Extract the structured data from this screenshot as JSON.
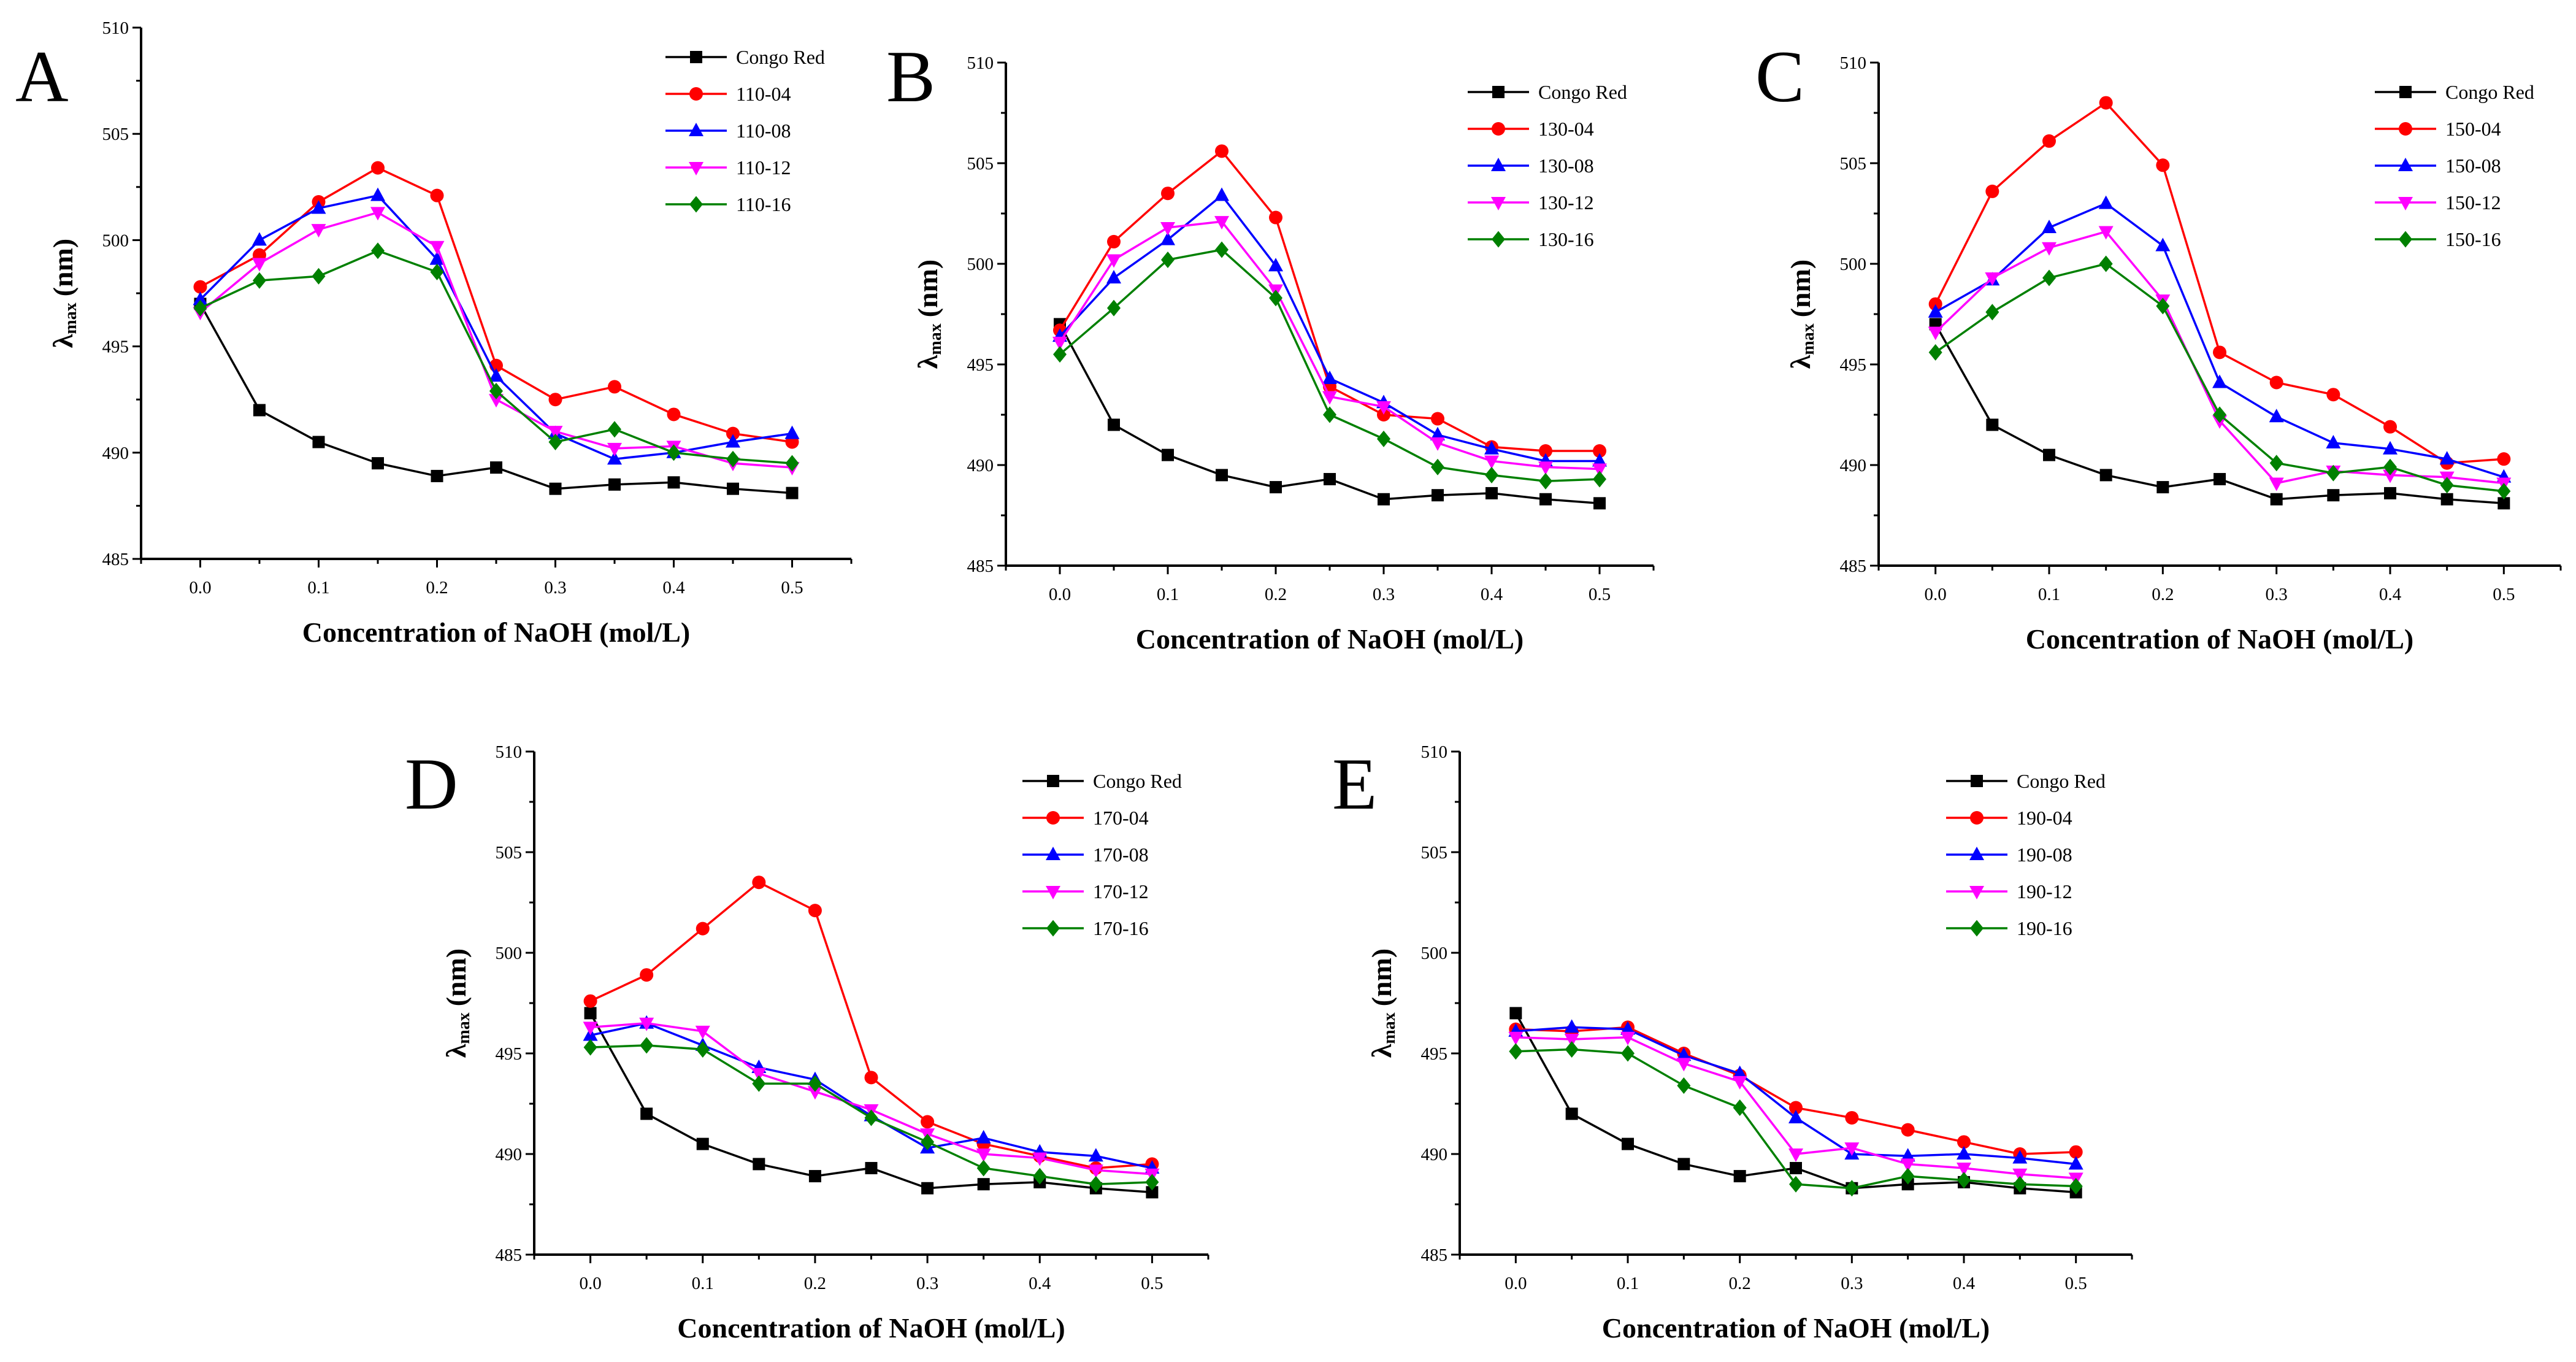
{
  "chart_data": [
    {
      "type": "line",
      "panel_label": "A",
      "xlabel": "Concentration of NaOH (mol/L)",
      "ylabel": {
        "symbol": "λ",
        "sub": "max",
        "unit": "(nm)"
      },
      "xlim": [
        -0.05,
        0.55
      ],
      "ylim": [
        485,
        510
      ],
      "xticks": [
        "0.0",
        "0.1",
        "0.2",
        "0.3",
        "0.4",
        "0.5"
      ],
      "yticks": [
        "485",
        "490",
        "495",
        "500",
        "505",
        "510"
      ],
      "legend": "top-right",
      "grid": false,
      "x": [
        0,
        0.05,
        0.1,
        0.15,
        0.2,
        0.25,
        0.3,
        0.35,
        0.4,
        0.45,
        0.5
      ],
      "series": [
        {
          "name": "Congo Red",
          "color": "#000000",
          "marker": "square",
          "values": [
            497.0,
            492.0,
            490.5,
            489.5,
            488.9,
            489.3,
            488.3,
            488.5,
            488.6,
            488.3,
            488.1
          ]
        },
        {
          "name": "110-04",
          "color": "#ff0000",
          "marker": "circle",
          "values": [
            497.8,
            499.3,
            501.8,
            503.4,
            502.1,
            494.1,
            492.5,
            493.1,
            491.8,
            490.9,
            490.5
          ]
        },
        {
          "name": "110-08",
          "color": "#0000ff",
          "marker": "triangle-up",
          "values": [
            497.2,
            500.0,
            501.5,
            502.1,
            499.1,
            493.6,
            490.9,
            489.7,
            490.0,
            490.5,
            490.9
          ]
        },
        {
          "name": "110-12",
          "color": "#ff00ff",
          "marker": "triangle-down",
          "values": [
            496.6,
            498.9,
            500.5,
            501.3,
            499.7,
            492.5,
            491.0,
            490.2,
            490.3,
            489.5,
            489.3
          ]
        },
        {
          "name": "110-16",
          "color": "#008000",
          "marker": "diamond",
          "values": [
            496.8,
            498.1,
            498.3,
            499.5,
            498.5,
            492.9,
            490.5,
            491.1,
            490.0,
            489.7,
            489.5
          ]
        }
      ]
    },
    {
      "type": "line",
      "panel_label": "B",
      "xlabel": "Concentration of NaOH (mol/L)",
      "ylabel": {
        "symbol": "λ",
        "sub": "max",
        "unit": "(nm)"
      },
      "xlim": [
        -0.05,
        0.55
      ],
      "ylim": [
        485,
        510
      ],
      "xticks": [
        "0.0",
        "0.1",
        "0.2",
        "0.3",
        "0.4",
        "0.5"
      ],
      "yticks": [
        "485",
        "490",
        "495",
        "500",
        "505",
        "510"
      ],
      "legend": "top-right",
      "grid": false,
      "x": [
        0,
        0.05,
        0.1,
        0.15,
        0.2,
        0.25,
        0.3,
        0.35,
        0.4,
        0.45,
        0.5
      ],
      "series": [
        {
          "name": "Congo Red",
          "color": "#000000",
          "marker": "square",
          "values": [
            497.0,
            492.0,
            490.5,
            489.5,
            488.9,
            489.3,
            488.3,
            488.5,
            488.6,
            488.3,
            488.1
          ]
        },
        {
          "name": "130-04",
          "color": "#ff0000",
          "marker": "circle",
          "values": [
            496.7,
            501.1,
            503.5,
            505.6,
            502.3,
            493.9,
            492.5,
            492.3,
            490.9,
            490.7,
            490.7
          ]
        },
        {
          "name": "130-08",
          "color": "#0000ff",
          "marker": "triangle-up",
          "values": [
            496.4,
            499.3,
            501.2,
            503.4,
            499.9,
            494.3,
            493.1,
            491.5,
            490.8,
            490.2,
            490.2
          ]
        },
        {
          "name": "130-12",
          "color": "#ff00ff",
          "marker": "triangle-down",
          "values": [
            496.1,
            500.2,
            501.8,
            502.1,
            498.7,
            493.4,
            492.9,
            491.1,
            490.2,
            489.9,
            489.8
          ]
        },
        {
          "name": "130-16",
          "color": "#008000",
          "marker": "diamond",
          "values": [
            495.5,
            497.8,
            500.2,
            500.7,
            498.3,
            492.5,
            491.3,
            489.9,
            489.5,
            489.2,
            489.3
          ]
        }
      ]
    },
    {
      "type": "line",
      "panel_label": "C",
      "xlabel": "Concentration of NaOH (mol/L)",
      "ylabel": {
        "symbol": "λ",
        "sub": "max",
        "unit": "(nm)"
      },
      "xlim": [
        -0.05,
        0.55
      ],
      "ylim": [
        485,
        510
      ],
      "xticks": [
        "0.0",
        "0.1",
        "0.2",
        "0.3",
        "0.4",
        "0.5"
      ],
      "yticks": [
        "485",
        "490",
        "495",
        "500",
        "505",
        "510"
      ],
      "legend": "top-right",
      "grid": false,
      "x": [
        0,
        0.05,
        0.1,
        0.15,
        0.2,
        0.25,
        0.3,
        0.35,
        0.4,
        0.45,
        0.5
      ],
      "series": [
        {
          "name": "Congo Red",
          "color": "#000000",
          "marker": "square",
          "values": [
            497.0,
            492.0,
            490.5,
            489.5,
            488.9,
            489.3,
            488.3,
            488.5,
            488.6,
            488.3,
            488.1
          ]
        },
        {
          "name": "150-04",
          "color": "#ff0000",
          "marker": "circle",
          "values": [
            498.0,
            503.6,
            506.1,
            508.0,
            504.9,
            495.6,
            494.1,
            493.5,
            491.9,
            490.1,
            490.3
          ]
        },
        {
          "name": "150-08",
          "color": "#0000ff",
          "marker": "triangle-up",
          "values": [
            497.6,
            499.2,
            501.8,
            503.0,
            500.9,
            494.1,
            492.4,
            491.1,
            490.8,
            490.3,
            489.4
          ]
        },
        {
          "name": "150-12",
          "color": "#ff00ff",
          "marker": "triangle-down",
          "values": [
            496.6,
            499.3,
            500.8,
            501.6,
            498.2,
            492.2,
            489.1,
            489.7,
            489.5,
            489.4,
            489.1
          ]
        },
        {
          "name": "150-16",
          "color": "#008000",
          "marker": "diamond",
          "values": [
            495.6,
            497.6,
            499.3,
            500.0,
            497.9,
            492.5,
            490.1,
            489.6,
            489.9,
            489.0,
            488.7
          ]
        }
      ]
    },
    {
      "type": "line",
      "panel_label": "D",
      "xlabel": "Concentration of NaOH (mol/L)",
      "ylabel": {
        "symbol": "λ",
        "sub": "max",
        "unit": "(nm)"
      },
      "xlim": [
        -0.05,
        0.55
      ],
      "ylim": [
        485,
        510
      ],
      "xticks": [
        "0.0",
        "0.1",
        "0.2",
        "0.3",
        "0.4",
        "0.5"
      ],
      "yticks": [
        "485",
        "490",
        "495",
        "500",
        "505",
        "510"
      ],
      "legend": "top-right",
      "grid": false,
      "x": [
        0,
        0.05,
        0.1,
        0.15,
        0.2,
        0.25,
        0.3,
        0.35,
        0.4,
        0.45,
        0.5
      ],
      "series": [
        {
          "name": "Congo Red",
          "color": "#000000",
          "marker": "square",
          "values": [
            497.0,
            492.0,
            490.5,
            489.5,
            488.9,
            489.3,
            488.3,
            488.5,
            488.6,
            488.3,
            488.1
          ]
        },
        {
          "name": "170-04",
          "color": "#ff0000",
          "marker": "circle",
          "values": [
            497.6,
            498.9,
            501.2,
            503.5,
            502.1,
            493.8,
            491.6,
            490.5,
            489.9,
            489.3,
            489.5
          ]
        },
        {
          "name": "170-08",
          "color": "#0000ff",
          "marker": "triangle-up",
          "values": [
            495.9,
            496.5,
            495.4,
            494.3,
            493.7,
            491.9,
            490.3,
            490.8,
            490.1,
            489.9,
            489.3
          ]
        },
        {
          "name": "170-12",
          "color": "#ff00ff",
          "marker": "triangle-down",
          "values": [
            496.3,
            496.5,
            496.1,
            494.0,
            493.1,
            492.2,
            491.0,
            490.0,
            489.8,
            489.2,
            489.0
          ]
        },
        {
          "name": "170-16",
          "color": "#008000",
          "marker": "diamond",
          "values": [
            495.3,
            495.4,
            495.2,
            493.5,
            493.5,
            491.8,
            490.6,
            489.3,
            488.9,
            488.5,
            488.6
          ]
        }
      ]
    },
    {
      "type": "line",
      "panel_label": "E",
      "xlabel": "Concentration of NaOH (mol/L)",
      "ylabel": {
        "symbol": "λ",
        "sub": "max",
        "unit": "(nm)"
      },
      "xlim": [
        -0.05,
        0.55
      ],
      "ylim": [
        485,
        510
      ],
      "xticks": [
        "0.0",
        "0.1",
        "0.2",
        "0.3",
        "0.4",
        "0.5"
      ],
      "yticks": [
        "485",
        "490",
        "495",
        "500",
        "505",
        "510"
      ],
      "legend": "top-right",
      "grid": false,
      "x": [
        0,
        0.05,
        0.1,
        0.15,
        0.2,
        0.25,
        0.3,
        0.35,
        0.4,
        0.45,
        0.5
      ],
      "series": [
        {
          "name": "Congo Red",
          "color": "#000000",
          "marker": "square",
          "values": [
            497.0,
            492.0,
            490.5,
            489.5,
            488.9,
            489.3,
            488.3,
            488.5,
            488.6,
            488.3,
            488.1
          ]
        },
        {
          "name": "190-04",
          "color": "#ff0000",
          "marker": "circle",
          "values": [
            496.2,
            496.1,
            496.3,
            495.0,
            493.9,
            492.3,
            491.8,
            491.2,
            490.6,
            490.0,
            490.1
          ]
        },
        {
          "name": "190-08",
          "color": "#0000ff",
          "marker": "triangle-up",
          "values": [
            496.1,
            496.3,
            496.2,
            494.9,
            494.0,
            491.8,
            490.0,
            489.9,
            490.0,
            489.8,
            489.5
          ]
        },
        {
          "name": "190-12",
          "color": "#ff00ff",
          "marker": "triangle-down",
          "values": [
            495.8,
            495.7,
            495.8,
            494.5,
            493.6,
            490.0,
            490.3,
            489.5,
            489.3,
            489.0,
            488.8
          ]
        },
        {
          "name": "190-16",
          "color": "#008000",
          "marker": "diamond",
          "values": [
            495.1,
            495.2,
            495.0,
            493.4,
            492.3,
            488.5,
            488.3,
            488.9,
            488.7,
            488.5,
            488.4
          ]
        }
      ]
    }
  ]
}
